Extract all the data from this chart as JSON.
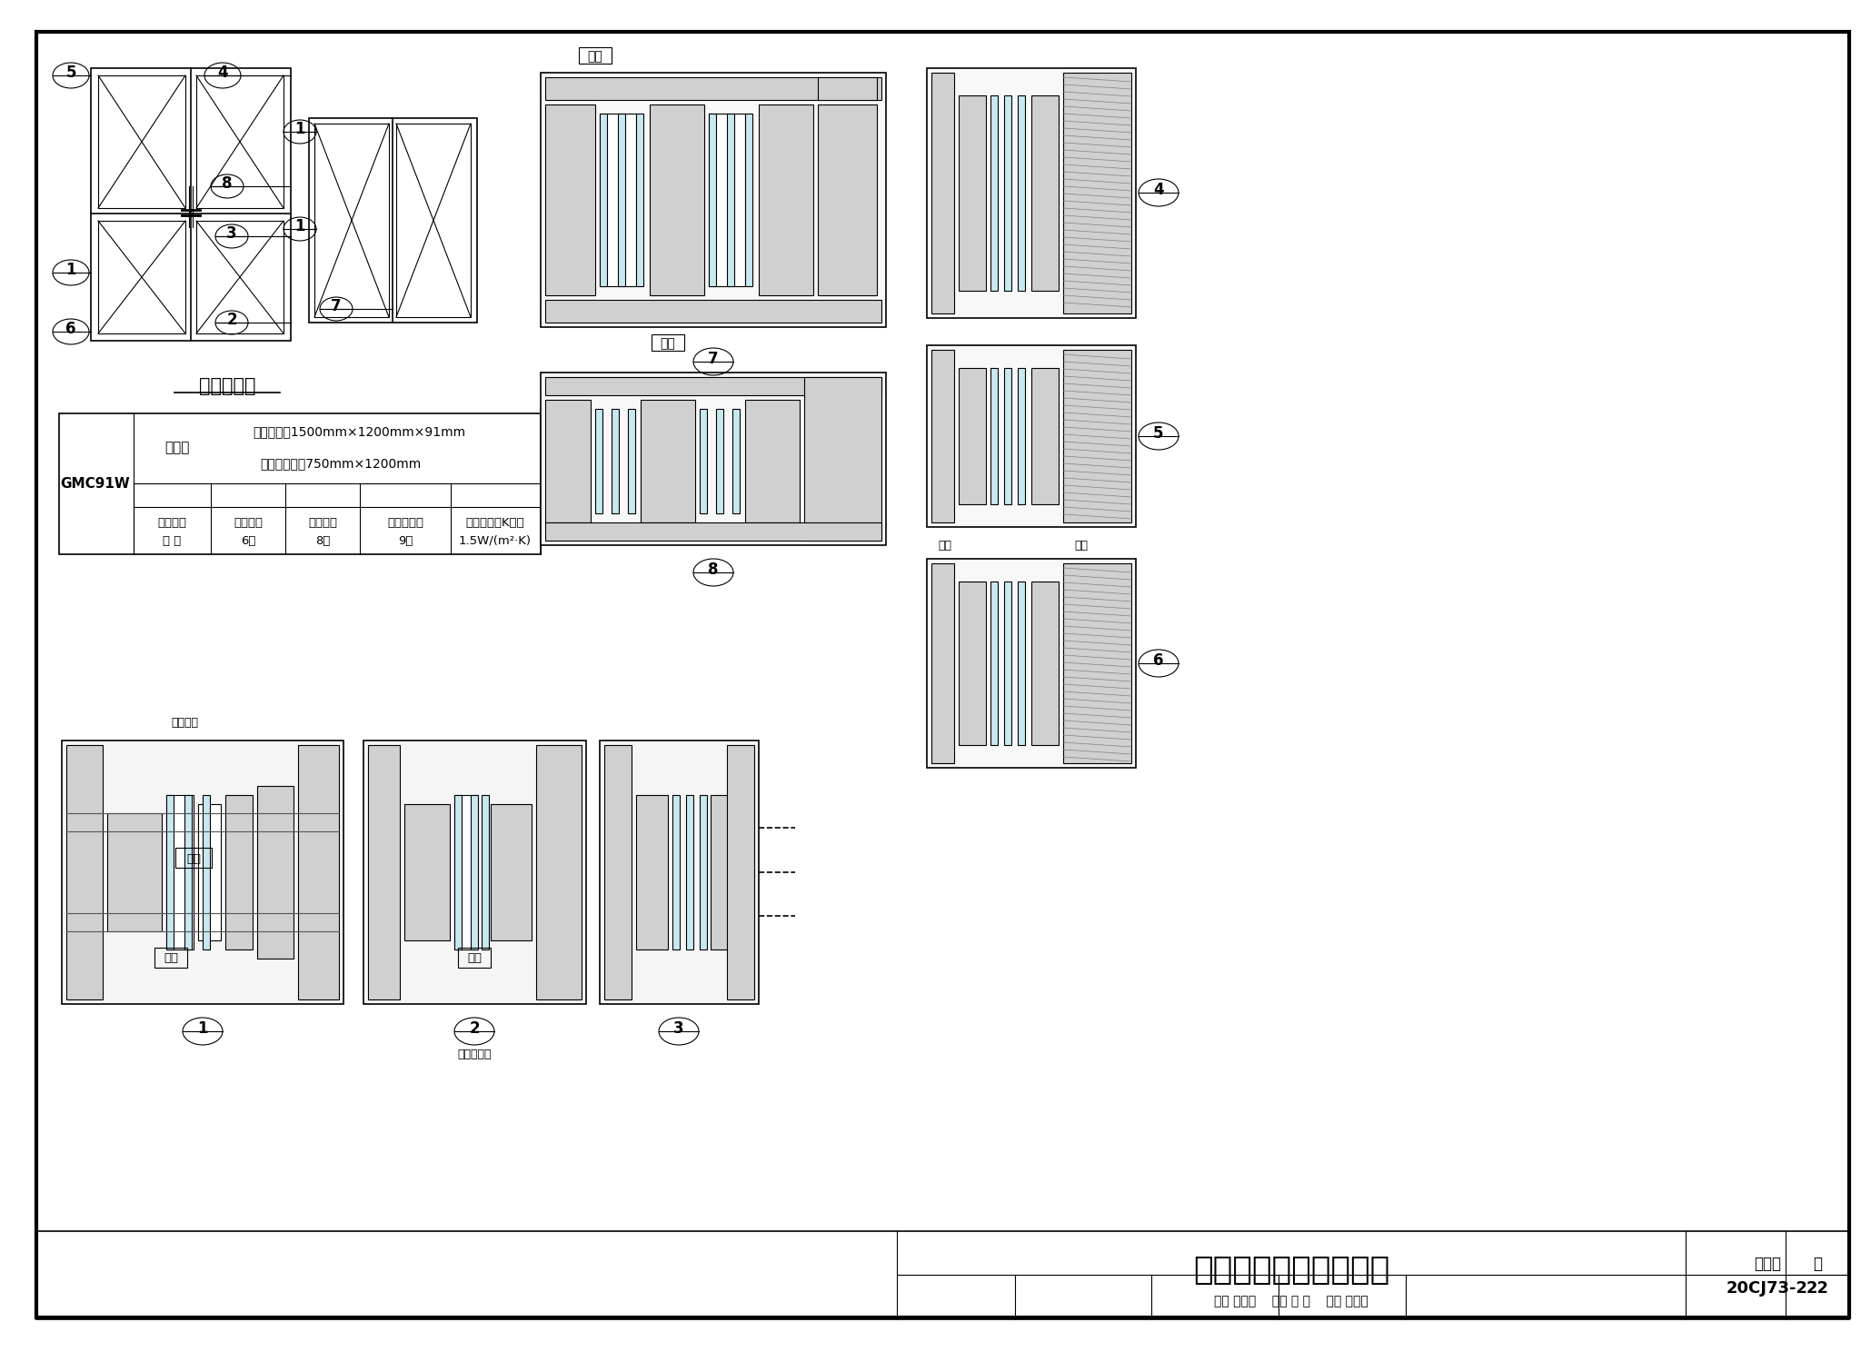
{
  "title": "三玻外开上悬窗节点图",
  "fig_number": "20CJ73-2",
  "page": "22",
  "drawing_title": "立面示意图",
  "table_model": "GMC91W",
  "table_headers": [
    "",
    "试验窗",
    "门窗尺寸：1500mm×1200mm×91mm\n活动扇尺寸：750mm×1200mm"
  ],
  "table_row1": [
    "性能指标",
    "水密性能",
    "气密性能",
    "抗风压性能",
    "保温性能（K值）"
  ],
  "table_row2": [
    "等 级",
    "6级",
    "8级",
    "9级",
    "1.5W/(m²·K)"
  ],
  "bg_color": "#ffffff",
  "line_color": "#000000",
  "border_color": "#000000",
  "callout_labels": [
    "1",
    "2",
    "3",
    "4",
    "5",
    "6",
    "7",
    "8"
  ],
  "annotations": [
    "室内",
    "室外",
    "玻璃垫块",
    "室内",
    "室外",
    "木塑微发泡",
    "室外",
    "室内"
  ],
  "review_line": "审核 李正刚    校对 刘 宁    设计 王湘莉",
  "fig_set": "图集号",
  "page_label": "页"
}
